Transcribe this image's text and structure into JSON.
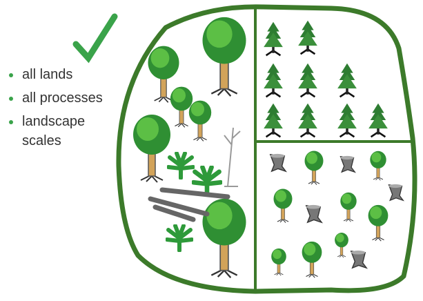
{
  "bullets": [
    "all lands",
    "all processes",
    "landscape scales"
  ]
}
